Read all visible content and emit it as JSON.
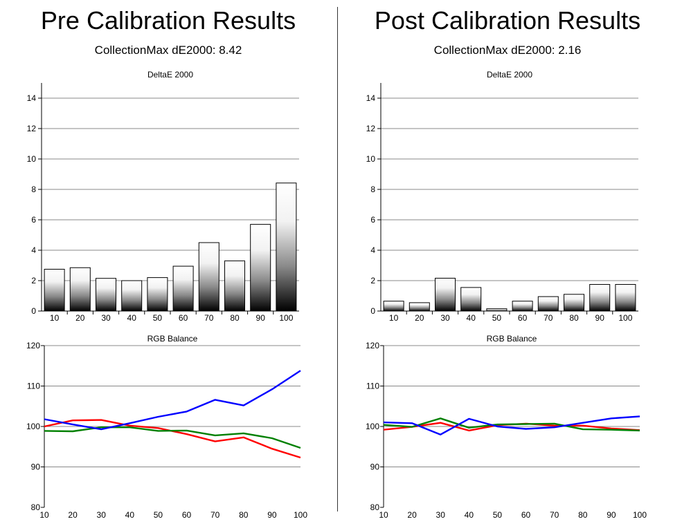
{
  "left": {
    "title": "Pre Calibration Results",
    "subtitle": "CollectionMax dE2000: 8.42"
  },
  "right": {
    "title": "Post Calibration Results",
    "subtitle": "CollectionMax dE2000: 2.16"
  },
  "chart_data": [
    {
      "type": "bar",
      "title": "DeltaE 2000",
      "categories": [
        "10",
        "20",
        "30",
        "40",
        "50",
        "60",
        "70",
        "80",
        "90",
        "100"
      ],
      "values": [
        2.75,
        2.85,
        2.15,
        2.0,
        2.2,
        2.95,
        4.5,
        3.3,
        5.7,
        8.42
      ],
      "ylim": [
        0,
        15
      ],
      "yticks": [
        0,
        2,
        4,
        6,
        8,
        10,
        12,
        14
      ],
      "grid": true
    },
    {
      "type": "line",
      "title": "RGB Balance",
      "x": [
        10,
        20,
        30,
        40,
        50,
        60,
        70,
        80,
        90,
        100
      ],
      "ylim": [
        80,
        120
      ],
      "yticks": [
        80,
        90,
        100,
        110,
        120
      ],
      "grid": true,
      "series": [
        {
          "color": "#ff0000",
          "values": [
            100.0,
            101.5,
            101.6,
            100.2,
            99.6,
            98.1,
            96.3,
            97.3,
            94.5,
            92.3
          ]
        },
        {
          "color": "#008000",
          "values": [
            98.9,
            98.8,
            99.8,
            99.8,
            98.9,
            99.0,
            97.8,
            98.3,
            97.1,
            94.7
          ]
        },
        {
          "color": "#0000ff",
          "values": [
            101.8,
            100.5,
            99.3,
            100.8,
            102.4,
            103.7,
            106.6,
            105.2,
            109.2,
            113.8
          ]
        }
      ]
    },
    {
      "type": "bar",
      "title": "DeltaE 2000",
      "categories": [
        "10",
        "20",
        "30",
        "40",
        "50",
        "60",
        "70",
        "80",
        "90",
        "100"
      ],
      "values": [
        0.65,
        0.55,
        2.16,
        1.55,
        0.15,
        0.65,
        0.95,
        1.1,
        1.75,
        1.75
      ],
      "ylim": [
        0,
        15
      ],
      "yticks": [
        0,
        2,
        4,
        6,
        8,
        10,
        12,
        14
      ],
      "grid": true
    },
    {
      "type": "line",
      "title": "RGB Balance",
      "x": [
        10,
        20,
        30,
        40,
        50,
        60,
        70,
        80,
        90,
        100
      ],
      "ylim": [
        80,
        120
      ],
      "yticks": [
        80,
        90,
        100,
        110,
        120
      ],
      "grid": true,
      "series": [
        {
          "color": "#ff0000",
          "values": [
            99.2,
            99.9,
            100.9,
            99.0,
            100.3,
            100.7,
            100.2,
            100.2,
            99.5,
            99.1
          ]
        },
        {
          "color": "#008000",
          "values": [
            100.4,
            99.9,
            102.0,
            99.7,
            100.5,
            100.6,
            100.7,
            99.3,
            99.2,
            99.0
          ]
        },
        {
          "color": "#0000ff",
          "values": [
            101.0,
            100.8,
            98.0,
            101.9,
            100.0,
            99.4,
            99.8,
            100.9,
            102.0,
            102.5
          ]
        }
      ]
    }
  ]
}
